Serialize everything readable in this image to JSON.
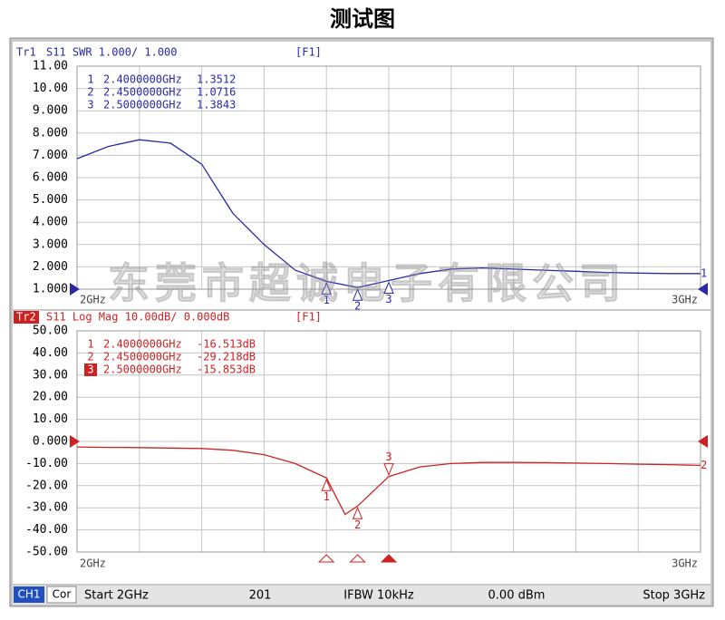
{
  "title": "测试图",
  "watermark": "东莞市超诚电子有限公司",
  "status_bar": {
    "channel": "CH1",
    "correction": "Cor",
    "start": "Start 2GHz",
    "points": "201",
    "ifbw": "IFBW 10kHz",
    "power": "0.00 dBm",
    "stop": "Stop 3GHz"
  },
  "chart_data": [
    {
      "type": "line",
      "trace": "Tr1",
      "header": "S11 SWR 1.000/ 1.000",
      "channel": "[F1]",
      "color": "#2a2aa8",
      "trace_label": "1",
      "ref_level": 1,
      "grid": true,
      "xlim": [
        2,
        3
      ],
      "xticks": [
        {
          "value": 2,
          "label": "2GHz"
        },
        {
          "value": 2.1,
          "label": null
        },
        {
          "value": 2.2,
          "label": null
        },
        {
          "value": 2.3,
          "label": null
        },
        {
          "value": 2.4,
          "label": null
        },
        {
          "value": 2.5,
          "label": null
        },
        {
          "value": 2.6,
          "label": null
        },
        {
          "value": 2.7,
          "label": null
        },
        {
          "value": 2.8,
          "label": null
        },
        {
          "value": 2.9,
          "label": null
        },
        {
          "value": 3,
          "label": "3GHz"
        }
      ],
      "ylim": [
        1,
        11
      ],
      "yticks": [
        {
          "value": 11,
          "label": "11.00"
        },
        {
          "value": 10,
          "label": "10.00"
        },
        {
          "value": 9,
          "label": "9.000"
        },
        {
          "value": 8,
          "label": "8.000"
        },
        {
          "value": 7,
          "label": "7.000"
        },
        {
          "value": 6,
          "label": "6.000"
        },
        {
          "value": 5,
          "label": "5.000"
        },
        {
          "value": 4,
          "label": "4.000"
        },
        {
          "value": 3,
          "label": "3.000"
        },
        {
          "value": 2,
          "label": "2.000"
        },
        {
          "value": 1,
          "label": "1.000"
        }
      ],
      "x": [
        2.0,
        2.05,
        2.1,
        2.15,
        2.2,
        2.25,
        2.3,
        2.35,
        2.4,
        2.45,
        2.5,
        2.55,
        2.6,
        2.65,
        2.7,
        2.75,
        2.8,
        2.85,
        2.9,
        2.95,
        3.0
      ],
      "values": [
        6.85,
        7.4,
        7.7,
        7.55,
        6.6,
        4.4,
        3.0,
        1.85,
        1.3512,
        1.0716,
        1.3843,
        1.7,
        1.9,
        1.95,
        1.9,
        1.85,
        1.8,
        1.75,
        1.72,
        1.7,
        1.7
      ],
      "markers": [
        {
          "label": "1",
          "x": 2.4,
          "x_label": "2.4000000GHz",
          "value": 1.3512
        },
        {
          "label": "2",
          "x": 2.45,
          "x_label": "2.4500000GHz",
          "value": 1.0716
        },
        {
          "label": "3",
          "x": 2.5,
          "x_label": "2.5000000GHz",
          "value": 1.3843
        }
      ]
    },
    {
      "type": "line",
      "trace": "Tr2",
      "header": "S11 Log Mag 10.00dB/ 0.000dB",
      "channel": "[F1]",
      "color": "#cc2222",
      "trace_label": "2",
      "ref_level": 0,
      "grid": true,
      "xlim": [
        2,
        3
      ],
      "xticks": [
        {
          "value": 2,
          "label": "2GHz"
        },
        {
          "value": 2.1,
          "label": null
        },
        {
          "value": 2.2,
          "label": null
        },
        {
          "value": 2.3,
          "label": null
        },
        {
          "value": 2.4,
          "label": null
        },
        {
          "value": 2.5,
          "label": null
        },
        {
          "value": 2.6,
          "label": null
        },
        {
          "value": 2.7,
          "label": null
        },
        {
          "value": 2.8,
          "label": null
        },
        {
          "value": 2.9,
          "label": null
        },
        {
          "value": 3,
          "label": "3GHz"
        }
      ],
      "ylim": [
        -50,
        50
      ],
      "yticks": [
        {
          "value": 50,
          "label": "50.00"
        },
        {
          "value": 40,
          "label": "40.00"
        },
        {
          "value": 30,
          "label": "30.00"
        },
        {
          "value": 20,
          "label": "20.00"
        },
        {
          "value": 10,
          "label": "10.00"
        },
        {
          "value": 0,
          "label": "0.000"
        },
        {
          "value": -10,
          "label": "-10.00"
        },
        {
          "value": -20,
          "label": "-20.00"
        },
        {
          "value": -30,
          "label": "-30.00"
        },
        {
          "value": -40,
          "label": "-40.00"
        },
        {
          "value": -50,
          "label": "-50.00"
        }
      ],
      "x": [
        2.0,
        2.05,
        2.1,
        2.15,
        2.2,
        2.25,
        2.3,
        2.35,
        2.4,
        2.43,
        2.45,
        2.5,
        2.55,
        2.6,
        2.65,
        2.7,
        2.75,
        2.8,
        2.85,
        2.9,
        2.95,
        3.0
      ],
      "values": [
        -2.5,
        -2.7,
        -2.8,
        -3,
        -3.2,
        -4,
        -6,
        -10,
        -16.513,
        -33,
        -29.218,
        -15.853,
        -11.5,
        -10,
        -9.5,
        -9.5,
        -9.6,
        -9.8,
        -10,
        -10.3,
        -10.5,
        -10.8
      ],
      "markers": [
        {
          "label": "1",
          "x": 2.4,
          "x_label": "2.4000000GHz",
          "value": -16.513,
          "value_label": "-16.513dB"
        },
        {
          "label": "2",
          "x": 2.45,
          "x_label": "2.4500000GHz",
          "value": -29.218,
          "value_label": "-29.218dB"
        },
        {
          "label": "3",
          "x": 2.5,
          "x_label": "2.5000000GHz",
          "value": -15.853,
          "value_label": "-15.853dB",
          "active": true
        }
      ]
    }
  ]
}
